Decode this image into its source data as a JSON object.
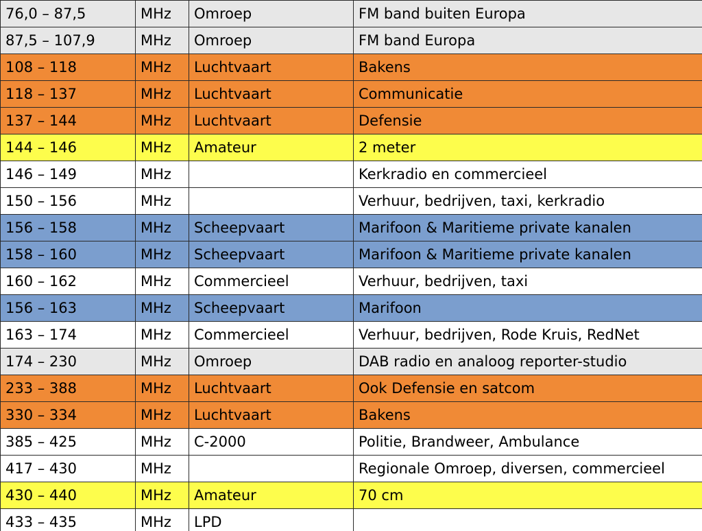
{
  "colors": {
    "gray": "#e7e7e7",
    "orange": "#f08a36",
    "yellow": "#fdfd4c",
    "blue": "#7b9ece",
    "white": "#ffffff",
    "border": "#2a2a2a"
  },
  "rows": [
    {
      "range": "76,0 – 87,5",
      "unit": "MHz",
      "service": "Omroep",
      "description": "FM band buiten Europa",
      "color": "gray"
    },
    {
      "range": "87,5 – 107,9",
      "unit": "MHz",
      "service": "Omroep",
      "description": "FM band Europa",
      "color": "gray"
    },
    {
      "range": "108 – 118",
      "unit": "MHz",
      "service": "Luchtvaart",
      "description": "Bakens",
      "color": "orange"
    },
    {
      "range": "118 – 137",
      "unit": "MHz",
      "service": "Luchtvaart",
      "description": "Communicatie",
      "color": "orange"
    },
    {
      "range": "137 – 144",
      "unit": "MHz",
      "service": "Luchtvaart",
      "description": "Defensie",
      "color": "orange"
    },
    {
      "range": "144 – 146",
      "unit": "MHz",
      "service": "Amateur",
      "description": "2 meter",
      "color": "yellow"
    },
    {
      "range": "146 – 149",
      "unit": "MHz",
      "service": "",
      "description": "Kerkradio en commercieel",
      "color": "white"
    },
    {
      "range": "150 – 156",
      "unit": "MHz",
      "service": "",
      "description": "Verhuur, bedrijven, taxi, kerkradio",
      "color": "white"
    },
    {
      "range": "156 – 158",
      "unit": "MHz",
      "service": "Scheepvaart",
      "description": "Marifoon & Maritieme private kanalen",
      "color": "blue"
    },
    {
      "range": "158 – 160",
      "unit": "MHz",
      "service": "Scheepvaart",
      "description": "Marifoon & Maritieme private kanalen",
      "color": "blue"
    },
    {
      "range": "160 – 162",
      "unit": "MHz",
      "service": "Commercieel",
      "description": "Verhuur, bedrijven, taxi",
      "color": "white"
    },
    {
      "range": "156 – 163",
      "unit": "MHz",
      "service": "Scheepvaart",
      "description": "Marifoon",
      "color": "blue"
    },
    {
      "range": "163 – 174",
      "unit": "MHz",
      "service": "Commercieel",
      "description": "Verhuur, bedrijven, Rode Kruis, RedNet",
      "color": "white"
    },
    {
      "range": "174 – 230",
      "unit": "MHz",
      "service": "Omroep",
      "description": "DAB radio en analoog reporter-studio",
      "color": "gray"
    },
    {
      "range": "233 – 388",
      "unit": "MHz",
      "service": "Luchtvaart",
      "description": "Ook Defensie en satcom",
      "color": "orange"
    },
    {
      "range": "330 – 334",
      "unit": "MHz",
      "service": "Luchtvaart",
      "description": "Bakens",
      "color": "orange"
    },
    {
      "range": "385 – 425",
      "unit": "MHz",
      "service": "C-2000",
      "description": "Politie, Brandweer, Ambulance",
      "color": "white"
    },
    {
      "range": "417 – 430",
      "unit": "MHz",
      "service": "",
      "description": "Regionale Omroep, diversen, commercieel",
      "color": "white"
    },
    {
      "range": "430 – 440",
      "unit": "MHz",
      "service": "Amateur",
      "description": "70 cm",
      "color": "yellow"
    },
    {
      "range": "433 – 435",
      "unit": "MHz",
      "service": "LPD",
      "description": "",
      "color": "white"
    }
  ]
}
